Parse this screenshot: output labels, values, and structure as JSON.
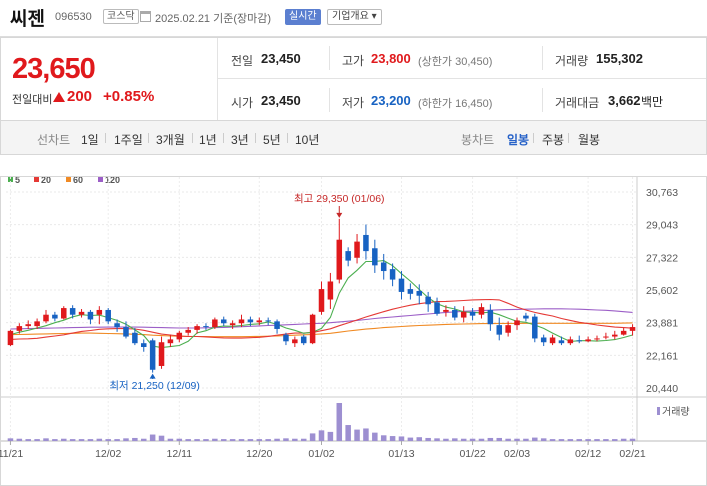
{
  "header": {
    "name": "씨젠",
    "code": "096530",
    "market": "코스닥",
    "date": "2025.02.21  기준(장마감)",
    "realtime_btn": "실시간",
    "company_btn": "기업개요 ▾"
  },
  "price": {
    "current": "23,650",
    "change_label": "전일대비",
    "change": "200",
    "change_pct": "+0.85%"
  },
  "summary": {
    "prev_label": "전일",
    "prev": "23,450",
    "open_label": "시가",
    "open": "23,450",
    "high_label": "고가",
    "high": "23,800",
    "upper_limit": "(상한가 30,450)",
    "low_label": "저가",
    "low": "23,200",
    "lower_limit": "(하한가 16,450)",
    "volume_label": "거래량",
    "volume": "155,302",
    "amount_label": "거래대금",
    "amount": "3,662",
    "amount_unit": "백만"
  },
  "period_bar": {
    "line_label": "선차트",
    "line_periods": [
      "1일",
      "1주일",
      "3개월",
      "1년",
      "3년",
      "5년",
      "10년"
    ],
    "candle_label": "봉차트",
    "candle_periods": [
      "일봉",
      "주봉",
      "월봉"
    ],
    "active_candle": "일봉"
  },
  "colors": {
    "up": "#e0191c",
    "down": "#1762c2",
    "ma5": "#4caf50",
    "ma20": "#e53935",
    "ma60": "#f08a24",
    "ma120": "#9c5fc7",
    "volume": "#9d8fd1"
  },
  "chart_data": {
    "type": "candlestick",
    "legend": [
      {
        "name": "5",
        "color": "#4caf50"
      },
      {
        "name": "20",
        "color": "#e53935"
      },
      {
        "name": "60",
        "color": "#f08a24"
      },
      {
        "name": "120",
        "color": "#9c5fc7"
      }
    ],
    "y_ticks": [
      "30,763",
      "29,043",
      "27,322",
      "25,602",
      "23,881",
      "22,161",
      "20,440"
    ],
    "ylim": [
      20440,
      30763
    ],
    "x_ticks": [
      "11/21",
      "12/02",
      "12/11",
      "12/20",
      "01/02",
      "01/13",
      "01/22",
      "02/03",
      "02/12",
      "02/21"
    ],
    "high_annotation": "최고 29,350 (01/06)",
    "low_annotation": "최저 21,250 (12/09)",
    "volume_label": "거래량",
    "candles": [
      [
        22700,
        23450,
        22650,
        23500
      ],
      [
        23450,
        23700,
        23300,
        23850
      ],
      [
        23700,
        23800,
        23550,
        24000
      ],
      [
        23700,
        23950,
        23550,
        24100
      ],
      [
        23950,
        24300,
        23850,
        24550
      ],
      [
        24300,
        24100,
        23950,
        24450
      ],
      [
        24100,
        24650,
        24050,
        24750
      ],
      [
        24650,
        24300,
        24100,
        24800
      ],
      [
        24300,
        24450,
        24150,
        24600
      ],
      [
        24450,
        24050,
        23800,
        24550
      ],
      [
        24300,
        24550,
        23800,
        24750
      ],
      [
        24550,
        23950,
        23800,
        24650
      ],
      [
        23850,
        23650,
        23400,
        24050
      ],
      [
        23650,
        23150,
        23050,
        23950
      ],
      [
        23350,
        22800,
        22700,
        23600
      ],
      [
        22800,
        22600,
        22350,
        23000
      ],
      [
        22950,
        21400,
        21250,
        23050
      ],
      [
        21600,
        22850,
        21450,
        23150
      ],
      [
        22800,
        23000,
        22600,
        23250
      ],
      [
        23000,
        23350,
        22850,
        23450
      ],
      [
        23350,
        23500,
        23200,
        23650
      ],
      [
        23500,
        23700,
        23300,
        23800
      ],
      [
        23700,
        23650,
        23500,
        23850
      ],
      [
        23650,
        24050,
        23550,
        24150
      ],
      [
        24050,
        23850,
        23700,
        24200
      ],
      [
        23750,
        23850,
        23550,
        24000
      ],
      [
        23850,
        24050,
        23650,
        24300
      ],
      [
        24050,
        23900,
        23700,
        24200
      ],
      [
        23900,
        24000,
        23750,
        24150
      ],
      [
        24000,
        23950,
        23750,
        24150
      ],
      [
        23950,
        23550,
        23300,
        24050
      ],
      [
        23250,
        22900,
        22700,
        23350
      ],
      [
        22800,
        23000,
        22600,
        23150
      ],
      [
        23150,
        22800,
        22700,
        23250
      ],
      [
        22800,
        24300,
        22750,
        24350
      ],
      [
        24450,
        25650,
        24300,
        26050
      ],
      [
        25100,
        26050,
        24600,
        26500
      ],
      [
        26150,
        28250,
        25950,
        29350
      ],
      [
        27650,
        27150,
        26850,
        27850
      ],
      [
        27300,
        28150,
        27000,
        28550
      ],
      [
        28500,
        27650,
        27200,
        29050
      ],
      [
        27800,
        26900,
        26500,
        28250
      ],
      [
        27050,
        26600,
        26150,
        27500
      ],
      [
        26700,
        26150,
        25800,
        27000
      ],
      [
        26200,
        25500,
        25100,
        26600
      ],
      [
        25650,
        25400,
        25100,
        25950
      ],
      [
        25550,
        25300,
        24850,
        25900
      ],
      [
        25250,
        24850,
        24450,
        25500
      ],
      [
        24950,
        24350,
        24250,
        25200
      ],
      [
        24450,
        24550,
        24200,
        24800
      ],
      [
        24550,
        24150,
        24000,
        24750
      ],
      [
        24150,
        24450,
        23900,
        24750
      ],
      [
        24450,
        24250,
        24000,
        24650
      ],
      [
        24300,
        24700,
        24100,
        24900
      ],
      [
        24550,
        23800,
        23450,
        24850
      ],
      [
        23750,
        23250,
        22950,
        24150
      ],
      [
        23350,
        23750,
        23150,
        23950
      ],
      [
        23750,
        24000,
        23500,
        24150
      ],
      [
        24250,
        24100,
        23950,
        24400
      ],
      [
        24200,
        23050,
        22850,
        24350
      ],
      [
        23100,
        22850,
        22650,
        23250
      ],
      [
        22800,
        23100,
        22700,
        23250
      ],
      [
        22950,
        22800,
        22700,
        23150
      ],
      [
        22800,
        23000,
        22700,
        23150
      ],
      [
        22950,
        22900,
        22800,
        23200
      ],
      [
        22900,
        23000,
        22850,
        23150
      ],
      [
        23000,
        23050,
        22900,
        23200
      ],
      [
        23100,
        23150,
        23000,
        23350
      ],
      [
        23150,
        23250,
        23000,
        23450
      ],
      [
        23250,
        23450,
        23200,
        23600
      ],
      [
        23450,
        23650,
        23200,
        23800
      ]
    ],
    "volume": [
      0.07,
      0.06,
      0.05,
      0.05,
      0.07,
      0.05,
      0.06,
      0.05,
      0.05,
      0.05,
      0.06,
      0.05,
      0.05,
      0.07,
      0.08,
      0.06,
      0.17,
      0.14,
      0.06,
      0.06,
      0.05,
      0.05,
      0.05,
      0.06,
      0.05,
      0.05,
      0.05,
      0.05,
      0.05,
      0.05,
      0.06,
      0.07,
      0.06,
      0.06,
      0.2,
      0.28,
      0.24,
      1.0,
      0.42,
      0.3,
      0.33,
      0.22,
      0.15,
      0.13,
      0.12,
      0.09,
      0.1,
      0.08,
      0.07,
      0.06,
      0.07,
      0.06,
      0.06,
      0.06,
      0.08,
      0.08,
      0.06,
      0.06,
      0.06,
      0.09,
      0.07,
      0.05,
      0.05,
      0.05,
      0.05,
      0.05,
      0.05,
      0.05,
      0.05,
      0.06,
      0.06
    ],
    "ma5": [
      23250,
      23380,
      23480,
      23600,
      23720,
      23880,
      24010,
      24190,
      24300,
      24260,
      24280,
      24150,
      24000,
      23800,
      23500,
      23200,
      22650,
      22570,
      22620,
      22680,
      22900,
      23340,
      23460,
      23650,
      23700,
      23690,
      23730,
      23790,
      23820,
      23920,
      23790,
      23600,
      23480,
      23320,
      23380,
      23580,
      24160,
      25440,
      26240,
      26640,
      27100,
      27110,
      27150,
      26880,
      26460,
      26070,
      25630,
      25200,
      24880,
      24700,
      24600,
      24450,
      24420,
      24400,
      24430,
      24300,
      24120,
      23950,
      23900,
      23760,
      23580,
      23330,
      23100,
      22890,
      22930,
      22930,
      22910,
      22940,
      22990,
      23100,
      23230
    ],
    "ma20": [
      23000,
      23020,
      23030,
      23060,
      23120,
      23180,
      23240,
      23330,
      23420,
      23470,
      23530,
      23560,
      23570,
      23570,
      23550,
      23480,
      23380,
      23280,
      23230,
      23180,
      23150,
      23150,
      23130,
      23100,
      23080,
      23070,
      23070,
      23090,
      23110,
      23160,
      23220,
      23280,
      23330,
      23330,
      23370,
      23460,
      23560,
      23720,
      23870,
      24020,
      24180,
      24320,
      24460,
      24590,
      24700,
      24800,
      24880,
      24940,
      24990,
      25000,
      25020,
      25050,
      25080,
      25090,
      25100,
      25080,
      24900,
      24700,
      24550,
      24420,
      24320,
      24230,
      24100,
      24000,
      23900,
      23830,
      23760,
      23700,
      23650,
      23620,
      23590
    ],
    "ma60": [
      23250,
      23260,
      23270,
      23280,
      23290,
      23300,
      23310,
      23320,
      23330,
      23330,
      23320,
      23310,
      23300,
      23290,
      23270,
      23250,
      23220,
      23200,
      23180,
      23170,
      23160,
      23150,
      23150,
      23140,
      23140,
      23140,
      23140,
      23150,
      23160,
      23170,
      23180,
      23200,
      23220,
      23240,
      23260,
      23290,
      23320,
      23380,
      23440,
      23490,
      23540,
      23580,
      23620,
      23650,
      23680,
      23710,
      23730,
      23750,
      23770,
      23790,
      23800,
      23810,
      23820,
      23830,
      23830,
      23840,
      23840,
      23840,
      23850,
      23850,
      23850,
      23850,
      23850,
      23850,
      23850,
      23850,
      23850,
      23850,
      23850,
      23860,
      23870
    ],
    "ma120": [
      23550,
      23560,
      23570,
      23580,
      23590,
      23600,
      23610,
      23620,
      23630,
      23640,
      23640,
      23650,
      23650,
      23650,
      23650,
      23640,
      23630,
      23620,
      23610,
      23600,
      23600,
      23600,
      23610,
      23620,
      23630,
      23650,
      23670,
      23690,
      23710,
      23730,
      23750,
      23770,
      23790,
      23810,
      23830,
      23850,
      23880,
      23920,
      23960,
      24000,
      24050,
      24100,
      24140,
      24180,
      24220,
      24260,
      24300,
      24340,
      24380,
      24420,
      24450,
      24480,
      24500,
      24520,
      24540,
      24560,
      24570,
      24580,
      24590,
      24600,
      24610,
      24610,
      24610,
      24600,
      24590,
      24570,
      24550,
      24530,
      24500,
      24460,
      24420
    ]
  }
}
